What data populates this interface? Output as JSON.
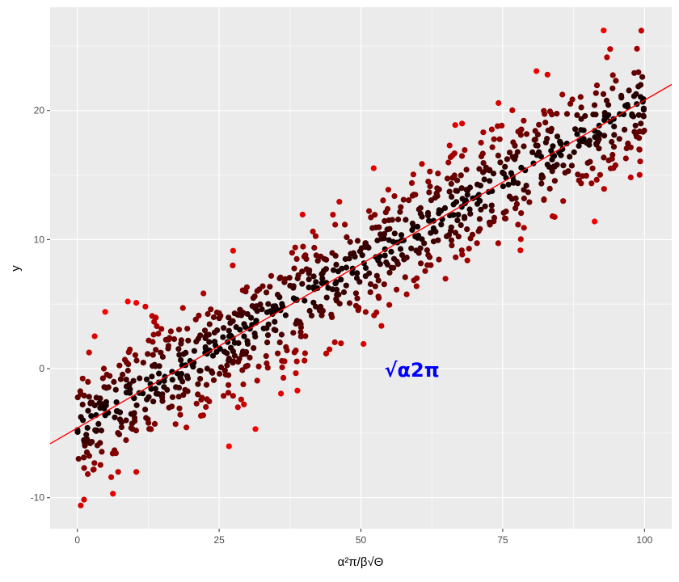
{
  "chart_data": {
    "type": "scatter",
    "title": "",
    "xlabel": "α²π/β√Θ",
    "ylabel": "y",
    "xlim": [
      -4.8,
      104.8
    ],
    "ylim": [
      -12.4,
      28.0
    ],
    "x_ticks": [
      0,
      25,
      50,
      75,
      100
    ],
    "y_ticks": [
      -10,
      0,
      10,
      20
    ],
    "x_tick_labels": [
      "0",
      "25",
      "50",
      "75",
      "100"
    ],
    "y_tick_labels": [
      "-10",
      "0",
      "10",
      "20"
    ],
    "grid": true,
    "legend": "none",
    "point_count": 1000,
    "fit_line": {
      "intercept": -4.6,
      "slope": 0.254,
      "color": "#ff0000"
    },
    "color_scale": {
      "low": "#000000",
      "high": "#ff0000",
      "mapped_to": "absolute residual"
    },
    "annotation": {
      "text": "√α2π",
      "x": 59,
      "y": -0.2,
      "color": "#0000ff"
    },
    "notable_points": [
      {
        "x": 92.8,
        "y": 26.2
      },
      {
        "x": 0.6,
        "y": -10.6
      },
      {
        "x": 38.8,
        "y": -1.7
      },
      {
        "x": 8.9,
        "y": 5.2
      },
      {
        "x": 4.9,
        "y": 4.4
      },
      {
        "x": 10.4,
        "y": 5.1
      },
      {
        "x": 91.2,
        "y": 11.4
      },
      {
        "x": 7.2,
        "y": -8.0
      },
      {
        "x": 10.4,
        "y": -8.0
      },
      {
        "x": 1.2,
        "y": -7.7
      }
    ]
  }
}
